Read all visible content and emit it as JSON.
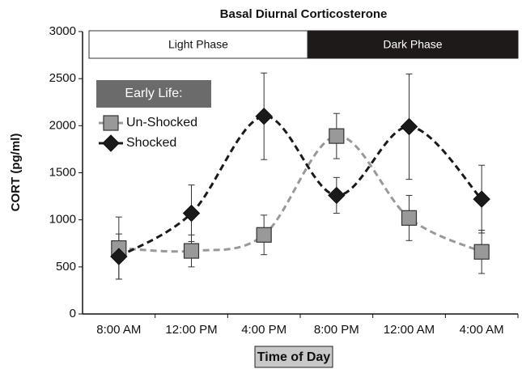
{
  "chart_data": {
    "type": "line",
    "title": "Basal Diurnal Corticosterone",
    "x_label": "Time of Day",
    "y_label": "CORT (pg/ml)",
    "annotations": [
      "Light Phase",
      "Dark Phase"
    ],
    "legend_title": "Early Life:",
    "legend": "upper left",
    "categories": [
      "8:00 AM",
      "12:00 PM",
      "4:00 PM",
      "8:00 PM",
      "12:00 AM",
      "4:00 AM"
    ],
    "series": [
      {
        "name": "Un-Shocked",
        "color": "#999999",
        "marker": "square",
        "values": [
          700,
          670,
          840,
          1890,
          1020,
          660
        ],
        "errors": [
          330,
          170,
          210,
          240,
          240,
          230
        ]
      },
      {
        "name": "Shocked",
        "color": "#1a1a1a",
        "marker": "diamond",
        "values": [
          610,
          1070,
          2100,
          1260,
          1990,
          1220
        ],
        "errors": [
          240,
          300,
          460,
          190,
          560,
          360
        ]
      }
    ],
    "ylim": [
      0,
      3000
    ],
    "yticks": [
      0,
      500,
      1000,
      1500,
      2000,
      2500,
      3000
    ],
    "grid": false
  }
}
